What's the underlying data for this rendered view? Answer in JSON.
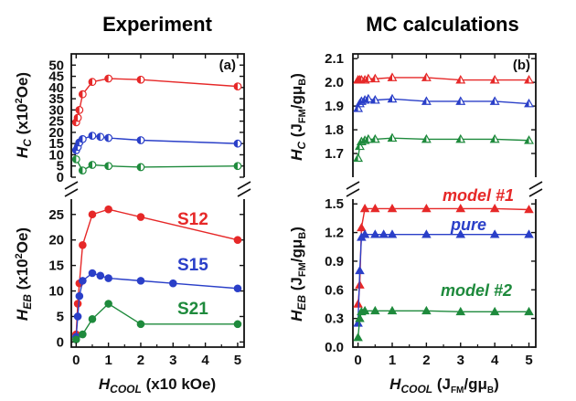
{
  "figure": {
    "left_title": "Experiment",
    "right_title": "MC calculations",
    "left_panel_label": "(a)",
    "right_panel_label": "(b)"
  },
  "chart_data": [
    {
      "id": "a",
      "type": "line",
      "xlabel": "H_cool (x10 kOe)",
      "x_ticks": [
        "0",
        "1",
        "2",
        "3",
        "4",
        "5"
      ],
      "xlim": [
        -0.15,
        5.2
      ],
      "broken_y_axis": true,
      "top": {
        "ylabel": "H_C (x10^2 Oe)",
        "ylim": [
          0,
          55
        ],
        "y_ticks": [
          "0",
          "5",
          "10",
          "15",
          "20",
          "25",
          "30",
          "35",
          "40",
          "45",
          "50"
        ],
        "marker": "half-filled circle",
        "series": [
          {
            "color": "#e62828",
            "x": [
              0.0,
              0.05,
              0.1,
              0.2,
              0.5,
              1.0,
              2.0,
              5.0
            ],
            "y": [
              24.5,
              26.5,
              30,
              37,
              42.5,
              44,
              43.5,
              40.5
            ]
          },
          {
            "color": "#2a3fc8",
            "x": [
              0.0,
              0.05,
              0.1,
              0.2,
              0.5,
              0.75,
              1.0,
              2.0,
              5.0
            ],
            "y": [
              12,
              13.5,
              15.5,
              17,
              18.5,
              18,
              17.5,
              16.5,
              15
            ]
          },
          {
            "color": "#1e8a3c",
            "x": [
              0.0,
              0.2,
              0.5,
              1.0,
              2.0,
              5.0
            ],
            "y": [
              8,
              3,
              5.5,
              5,
              4.5,
              5
            ]
          }
        ]
      },
      "bottom": {
        "ylabel": "H_EB (x10^2 Oe)",
        "ylim": [
          -1,
          28
        ],
        "y_ticks": [
          "0",
          "5",
          "10",
          "15",
          "20",
          "25"
        ],
        "marker": "filled circle",
        "series": [
          {
            "name": "S12",
            "color": "#e62828",
            "x": [
              0.0,
              0.05,
              0.1,
              0.2,
              0.5,
              1.0,
              2.0,
              5.0
            ],
            "y": [
              1.5,
              7.5,
              11.5,
              19,
              25,
              26,
              24.5,
              20
            ]
          },
          {
            "name": "S15",
            "color": "#2a3fc8",
            "x": [
              0.0,
              0.05,
              0.1,
              0.2,
              0.5,
              0.75,
              1.0,
              2.0,
              3.0,
              5.0
            ],
            "y": [
              1,
              5,
              9,
              12,
              13.5,
              13,
              12.5,
              12,
              11.5,
              10.5
            ]
          },
          {
            "name": "S21",
            "color": "#1e8a3c",
            "x": [
              0.0,
              0.2,
              0.5,
              1.0,
              2.0,
              5.0
            ],
            "y": [
              0.5,
              1.5,
              4.5,
              7.5,
              3.5,
              3.5
            ]
          }
        ]
      }
    },
    {
      "id": "b",
      "type": "line",
      "xlabel": "H_cool (J_FM/gμ_B)",
      "x_ticks": [
        "0",
        "1",
        "2",
        "3",
        "4",
        "5"
      ],
      "xlim": [
        -0.15,
        5.2
      ],
      "broken_y_axis": true,
      "top": {
        "ylabel": "H_C (J_FM/gμ_B)",
        "ylim": [
          1.6,
          2.12
        ],
        "y_ticks": [
          "1.7",
          "1.8",
          "1.9",
          "2.0",
          "2.1"
        ],
        "marker": "half-filled triangle",
        "series": [
          {
            "color": "#e62828",
            "x": [
              0.0,
              0.05,
              0.1,
              0.2,
              0.3,
              0.5,
              1.0,
              2.0,
              3.0,
              4.0,
              5.0
            ],
            "y": [
              2.01,
              2.01,
              2.01,
              2.01,
              2.015,
              2.015,
              2.02,
              2.02,
              2.01,
              2.01,
              2.01
            ]
          },
          {
            "color": "#2a3fc8",
            "x": [
              0.0,
              0.05,
              0.1,
              0.2,
              0.3,
              0.5,
              1.0,
              2.0,
              3.0,
              4.0,
              5.0
            ],
            "y": [
              1.89,
              1.91,
              1.92,
              1.925,
              1.93,
              1.925,
              1.93,
              1.92,
              1.92,
              1.92,
              1.91
            ]
          },
          {
            "color": "#1e8a3c",
            "x": [
              0.0,
              0.05,
              0.1,
              0.2,
              0.3,
              0.5,
              1.0,
              2.0,
              3.0,
              4.0,
              5.0
            ],
            "y": [
              1.68,
              1.73,
              1.75,
              1.755,
              1.76,
              1.76,
              1.765,
              1.76,
              1.76,
              1.76,
              1.755
            ]
          }
        ]
      },
      "bottom": {
        "ylabel": "H_EB (J_FM/gμ_B)",
        "ylim": [
          0,
          1.55
        ],
        "y_ticks": [
          "0.0",
          "0.3",
          "0.6",
          "0.9",
          "1.2",
          "1.5"
        ],
        "marker": "filled triangle",
        "series": [
          {
            "name": "model #1",
            "color": "#e62828",
            "x": [
              0.0,
              0.05,
              0.1,
              0.2,
              0.5,
              1.0,
              2.0,
              3.0,
              4.0,
              5.0
            ],
            "y": [
              0.45,
              0.65,
              1.25,
              1.45,
              1.45,
              1.45,
              1.45,
              1.45,
              1.45,
              1.44
            ]
          },
          {
            "name": "pure",
            "color": "#2a3fc8",
            "x": [
              0.0,
              0.05,
              0.1,
              0.2,
              0.5,
              0.75,
              1.0,
              2.0,
              3.0,
              4.0,
              5.0
            ],
            "y": [
              0.25,
              0.8,
              1.15,
              1.18,
              1.18,
              1.18,
              1.18,
              1.18,
              1.18,
              1.18,
              1.18
            ]
          },
          {
            "name": "model #2",
            "color": "#1e8a3c",
            "x": [
              0.0,
              0.05,
              0.1,
              0.2,
              0.5,
              1.0,
              2.0,
              3.0,
              4.0,
              5.0
            ],
            "y": [
              0.1,
              0.3,
              0.37,
              0.38,
              0.38,
              0.38,
              0.38,
              0.37,
              0.37,
              0.37
            ]
          }
        ]
      }
    }
  ]
}
